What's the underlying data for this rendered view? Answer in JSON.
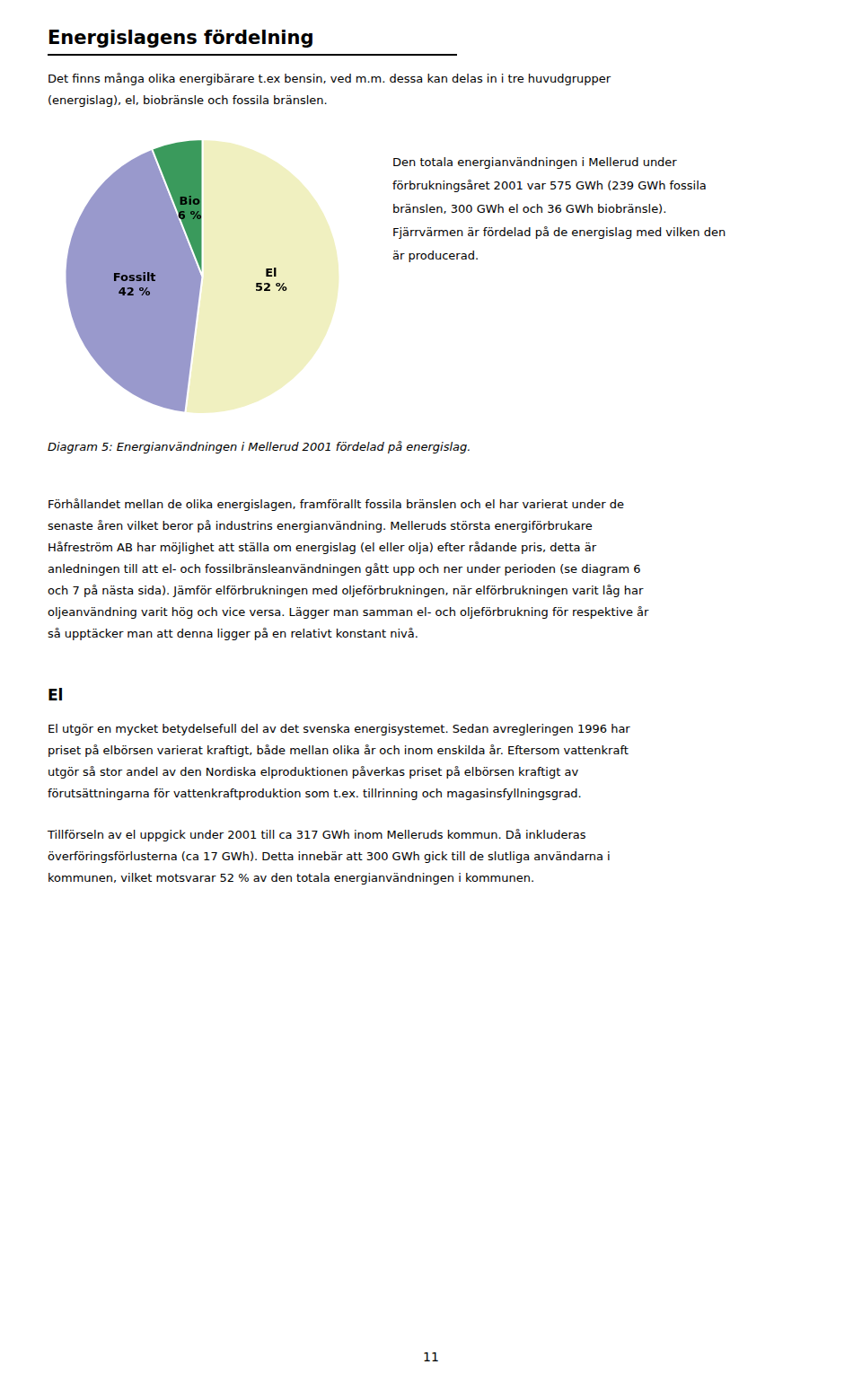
{
  "chart_data": {
    "type": "pie",
    "title": "Energislagens fördelning",
    "subtitle": [
      "Det finns många olika energibärare t.ex bensin, ved m.m. dessa kan delas in i tre huvudgrupper",
      "(energislag), el, biobränsle och fossila bränslen."
    ],
    "categories": [
      "El",
      "Fossilt",
      "Bio"
    ],
    "values": [
      52,
      42,
      6
    ],
    "value_labels": [
      "52 %",
      "42 %",
      "6 %"
    ],
    "colors": [
      "#f0f0c0",
      "#9999cc",
      "#3a9a5c"
    ],
    "data_labels": true,
    "annotations": {
      "side_text": [
        "Den totala energianvändningen i Mellerud under",
        "förbrukningsåret 2001 var 575 GWh (239 GWh fossila",
        "bränslen, 300 GWh el och 36 GWh biobränsle).",
        "Fjärrvärmen är fördelad på de energislag med vilken den",
        "är producerad."
      ],
      "caption": "Diagram 5: Energianvändningen i Mellerud 2001 fördelad på energislag.",
      "body": [
        "Förhållandet mellan de olika energislagen, framförallt fossila bränslen och el har varierat under de",
        "senaste åren vilket beror på industrins energianvändning. Melleruds största energiförbrukare",
        "Håfreström AB har möjlighet att ställa om energislag (el eller olja) efter rådande pris, detta är",
        "anledningen till att el- och fossilbränsleanvändningen gått upp och ner under perioden (se diagram 6",
        "och 7 på nästa sida). Jämför elförbrukningen med oljeförbrukningen, när elförbrukningen varit låg har",
        "oljeanvändning varit hög och vice versa. Lägger man samman el- och oljeförbrukning för respektive år",
        "så upptäcker man att denna ligger på en relativt konstant nivå."
      ],
      "heading": "El",
      "heading_body": [
        [
          "El utgör en mycket betydelsefull del av det svenska energisystemet. Sedan avregleringen 1996 har",
          "priset på elbörsen varierat kraftigt, både mellan olika år och inom enskilda år. Eftersom vattenkraft",
          "utgör så stor andel av den Nordiska elproduktionen påverkas priset på elbörsen kraftigt av",
          "förutsättningarna för vattenkraftproduktion som t.ex. tillrinning och magasinsfyllningsgrad."
        ],
        [
          "Tillförseln av el uppgick under 2001 till ca 317 GWh inom Melleruds kommun. Då inkluderas",
          "överföringsförlusterna (ca 17 GWh). Detta innebär att 300 GWh gick till de slutliga användarna i",
          "kommunen, vilket motsvarar 52 % av den totala energianvändningen i kommunen."
        ]
      ],
      "page_number": "11"
    }
  }
}
